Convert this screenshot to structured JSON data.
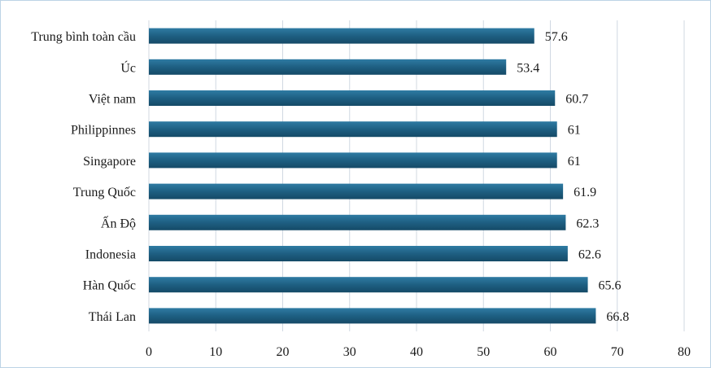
{
  "chart_data": {
    "type": "bar",
    "orientation": "horizontal",
    "categories": [
      "Trung bình toàn cầu",
      "Úc",
      "Việt nam",
      "Philippinnes",
      "Singapore",
      "Trung Quốc",
      "Ấn Độ",
      "Indonesia",
      "Hàn Quốc",
      "Thái Lan"
    ],
    "values": [
      57.6,
      53.4,
      60.7,
      61,
      61,
      61.9,
      62.3,
      62.6,
      65.6,
      66.8
    ],
    "data_labels": [
      "57.6",
      "53.4",
      "60.7",
      "61",
      "61",
      "61.9",
      "62.3",
      "62.6",
      "65.6",
      "66.8"
    ],
    "xlim": [
      0,
      80
    ],
    "xticks": [
      0,
      10,
      20,
      30,
      40,
      50,
      60,
      70,
      80
    ],
    "grid": "vertical",
    "legend": "none",
    "bar_color": "#1e5f82",
    "bar_color_light": "#2f7ba3",
    "bar_color_dark": "#154a67"
  }
}
